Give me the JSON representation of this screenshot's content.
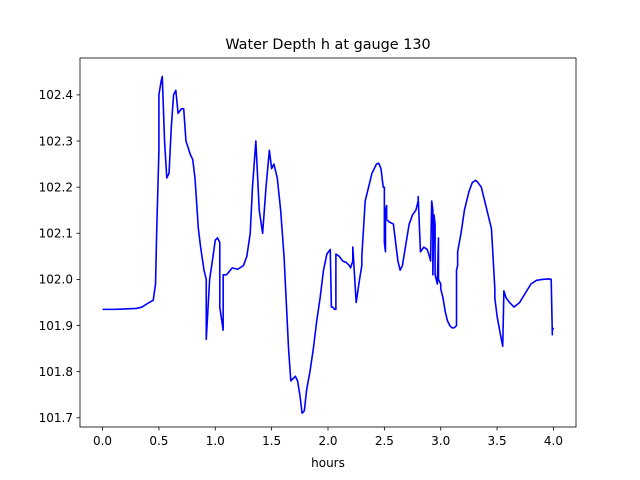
{
  "chart_data": {
    "type": "line",
    "title": "Water Depth h at gauge 130",
    "xlabel": "hours",
    "ylabel": "",
    "xlim": [
      -0.2,
      4.2
    ],
    "ylim": [
      101.68,
      102.48
    ],
    "xticks": [
      0.0,
      0.5,
      1.0,
      1.5,
      2.0,
      2.5,
      3.0,
      3.5,
      4.0
    ],
    "xtick_labels": [
      "0.0",
      "0.5",
      "1.0",
      "1.5",
      "2.0",
      "2.5",
      "3.0",
      "3.5",
      "4.0"
    ],
    "yticks": [
      101.7,
      101.8,
      101.9,
      102.0,
      102.1,
      102.2,
      102.3,
      102.4
    ],
    "ytick_labels": [
      "101.7",
      "101.8",
      "101.9",
      "102.0",
      "102.1",
      "102.2",
      "102.3",
      "102.4"
    ],
    "grid": false,
    "series": [
      {
        "name": "",
        "color": "#0000ff",
        "x": [
          0.0,
          0.1,
          0.2,
          0.3,
          0.35,
          0.4,
          0.45,
          0.47,
          0.48,
          0.5,
          0.5,
          0.52,
          0.53,
          0.55,
          0.57,
          0.59,
          0.61,
          0.63,
          0.65,
          0.67,
          0.7,
          0.72,
          0.74,
          0.78,
          0.8,
          0.82,
          0.85,
          0.87,
          0.9,
          0.92,
          0.92,
          0.95,
          0.98,
          1.0,
          1.02,
          1.04,
          1.04,
          1.07,
          1.07,
          1.1,
          1.15,
          1.2,
          1.25,
          1.28,
          1.31,
          1.33,
          1.36,
          1.39,
          1.42,
          1.45,
          1.48,
          1.5,
          1.52,
          1.55,
          1.58,
          1.61,
          1.63,
          1.65,
          1.67,
          1.69,
          1.71,
          1.73,
          1.75,
          1.77,
          1.79,
          1.81,
          1.84,
          1.87,
          1.9,
          1.93,
          1.96,
          1.99,
          2.02,
          2.03,
          2.04,
          2.06,
          2.07,
          2.07,
          2.1,
          2.13,
          2.16,
          2.19,
          2.2,
          2.22,
          2.22,
          2.25,
          2.28,
          2.3,
          2.3,
          2.33,
          2.36,
          2.39,
          2.43,
          2.45,
          2.47,
          2.49,
          2.5,
          2.5,
          2.51,
          2.51,
          2.52,
          2.52,
          2.54,
          2.58,
          2.6,
          2.62,
          2.64,
          2.66,
          2.68,
          2.72,
          2.75,
          2.78,
          2.8,
          2.8,
          2.82,
          2.85,
          2.88,
          2.9,
          2.91,
          2.92,
          2.93,
          2.93,
          2.94,
          2.95,
          2.95,
          2.97,
          2.98,
          2.98,
          3.0,
          3.0,
          3.02,
          3.04,
          3.06,
          3.08,
          3.1,
          3.12,
          3.14,
          3.14,
          3.15,
          3.15,
          3.18,
          3.21,
          3.25,
          3.28,
          3.31,
          3.33,
          3.36,
          3.39,
          3.42,
          3.45,
          3.48,
          3.48,
          3.5,
          3.53,
          3.55,
          3.56,
          3.56,
          3.58,
          3.61,
          3.65,
          3.7,
          3.75,
          3.8,
          3.85,
          3.9,
          3.95,
          3.97,
          3.97,
          3.98,
          3.99,
          3.99,
          4.0
        ],
        "y": [
          101.935,
          101.935,
          101.936,
          101.937,
          101.94,
          101.948,
          101.955,
          101.99,
          102.1,
          102.28,
          102.4,
          102.43,
          102.44,
          102.3,
          102.22,
          102.23,
          102.33,
          102.4,
          102.41,
          102.36,
          102.37,
          102.37,
          102.3,
          102.27,
          102.26,
          102.22,
          102.11,
          102.07,
          102.02,
          102.0,
          101.87,
          102.0,
          102.05,
          102.085,
          102.09,
          102.08,
          101.94,
          101.89,
          102.01,
          102.01,
          102.025,
          102.022,
          102.03,
          102.05,
          102.1,
          102.2,
          102.3,
          102.15,
          102.1,
          102.2,
          102.28,
          102.24,
          102.25,
          102.22,
          102.15,
          102.05,
          101.95,
          101.85,
          101.78,
          101.785,
          101.79,
          101.78,
          101.75,
          101.71,
          101.715,
          101.76,
          101.8,
          101.85,
          101.91,
          101.96,
          102.02,
          102.055,
          102.065,
          101.94,
          101.94,
          101.935,
          101.935,
          102.055,
          102.05,
          102.04,
          102.037,
          102.03,
          102.025,
          102.04,
          102.07,
          101.95,
          102.0,
          102.03,
          102.05,
          102.17,
          102.2,
          102.23,
          102.25,
          102.252,
          102.24,
          102.2,
          102.2,
          102.08,
          102.06,
          102.15,
          102.16,
          102.13,
          102.125,
          102.12,
          102.08,
          102.04,
          102.02,
          102.03,
          102.06,
          102.12,
          102.14,
          102.15,
          102.17,
          102.18,
          102.06,
          102.07,
          102.065,
          102.05,
          102.04,
          102.17,
          102.15,
          102.01,
          102.14,
          102.12,
          102.01,
          101.99,
          102.09,
          102.0,
          101.99,
          101.98,
          101.96,
          101.93,
          101.91,
          101.9,
          101.895,
          101.895,
          101.9,
          102.02,
          102.03,
          102.06,
          102.1,
          102.15,
          102.19,
          102.21,
          102.215,
          102.21,
          102.2,
          102.17,
          102.14,
          102.11,
          101.98,
          101.96,
          101.92,
          101.88,
          101.855,
          101.97,
          101.975,
          101.96,
          101.95,
          101.94,
          101.95,
          101.97,
          101.99,
          101.998,
          102.0,
          102.001,
          102.0,
          102.001,
          102.0,
          101.88,
          101.89,
          101.895
        ]
      }
    ]
  }
}
